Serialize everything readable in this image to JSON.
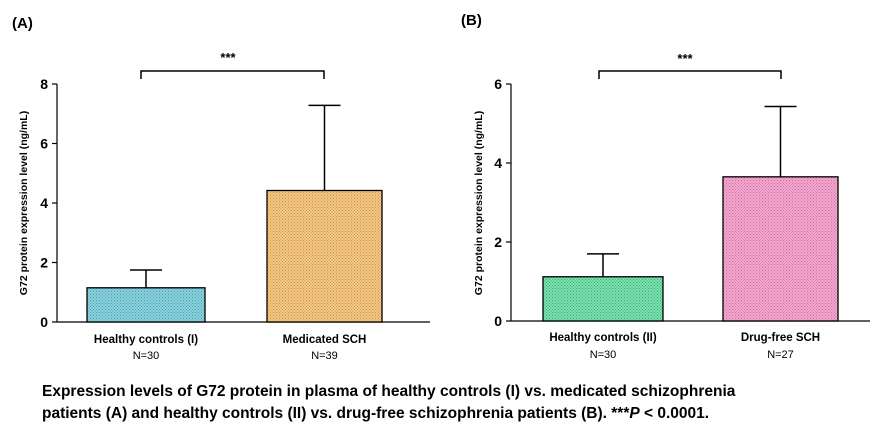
{
  "chart_data": [
    {
      "type": "bar",
      "panel_label": "(A)",
      "title": "",
      "xlabel": "",
      "ylabel": "G72 protein expression level (ng/mL)",
      "ylim": [
        0,
        8
      ],
      "yticks": [
        "0",
        "2",
        "4",
        "6",
        "8"
      ],
      "categories": [
        "Healthy controls (I)",
        "Medicated SCH"
      ],
      "sample_sizes": [
        "N=30",
        "N=39"
      ],
      "values": [
        1.15,
        4.42
      ],
      "error_upper": [
        1.75,
        7.28
      ],
      "significance": "***",
      "bar_colors": [
        "#8fd3df",
        "#f5c98a"
      ],
      "legend": "none",
      "grid": false
    },
    {
      "type": "bar",
      "panel_label": "(B)",
      "title": "",
      "xlabel": "",
      "ylabel": "G72 protein expression level (ng/mL)",
      "ylim": [
        0,
        6
      ],
      "yticks": [
        "0",
        "2",
        "4",
        "6"
      ],
      "categories": [
        "Healthy controls (II)",
        "Drug-free SCH"
      ],
      "sample_sizes": [
        "N=30",
        "N=27"
      ],
      "values": [
        1.12,
        3.65
      ],
      "error_upper": [
        1.7,
        5.43
      ],
      "significance": "***",
      "bar_colors": [
        "#7fe0b0",
        "#f2a9cf"
      ],
      "legend": "none",
      "grid": false
    }
  ],
  "caption": {
    "line1": "Expression levels of G72 protein in plasma of healthy controls (I) vs. medicated schizophrenia",
    "line2_start": "patients (A) and healthy controls (II) vs. drug-free schizophrenia patients (B). ***",
    "p_symbol": "P",
    "line2_end": " < 0.0001."
  }
}
